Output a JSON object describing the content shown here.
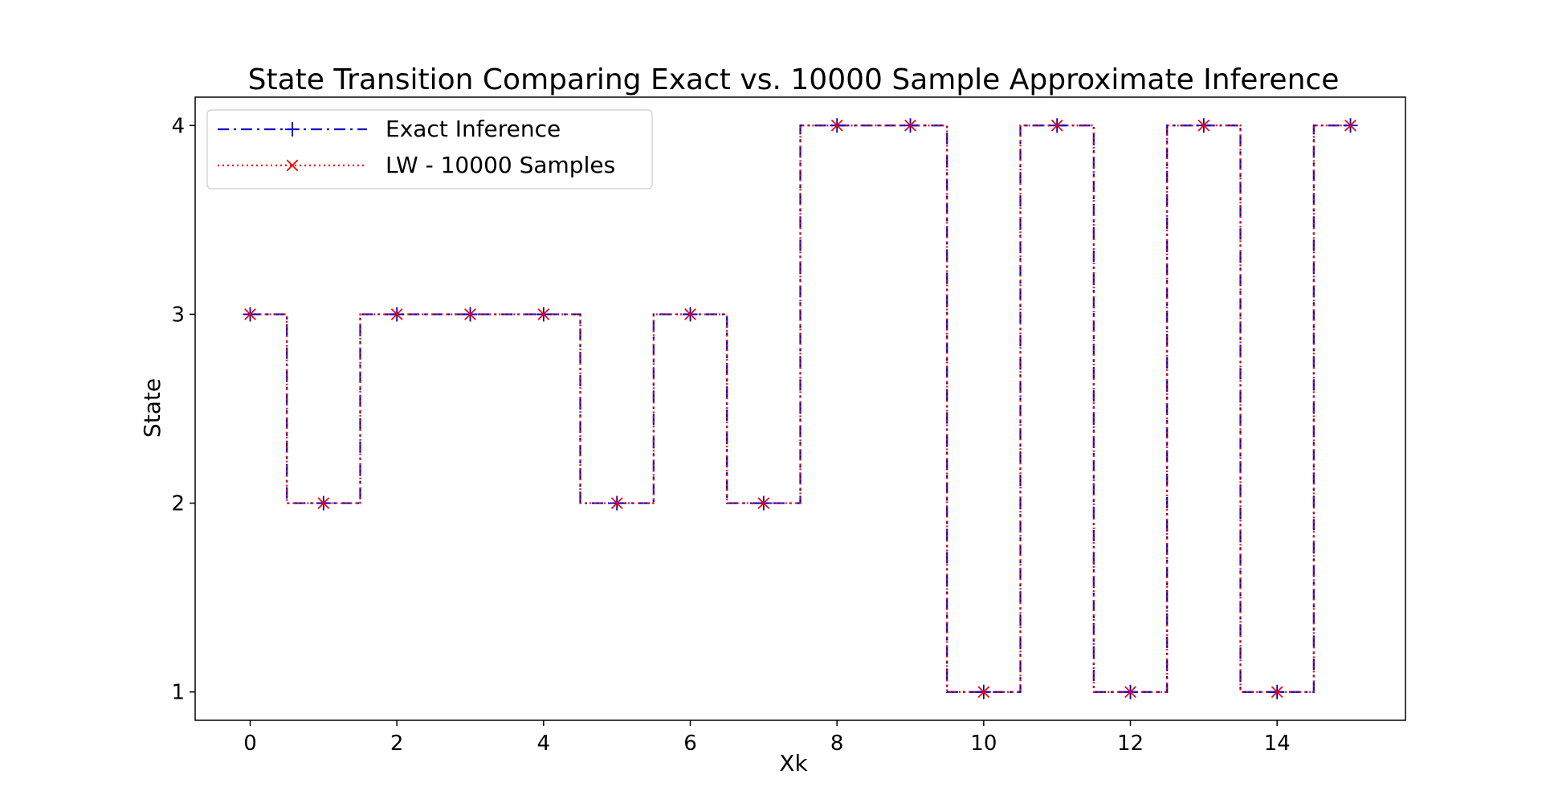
{
  "chart_data": {
    "type": "line",
    "title": "State Transition Comparing Exact vs. 10000 Sample Approximate Inference",
    "xlabel": "Xk",
    "ylabel": "State",
    "xlim": [
      -0.75,
      15.75
    ],
    "ylim": [
      0.85,
      4.15
    ],
    "xticks": [
      0,
      2,
      4,
      6,
      8,
      10,
      12,
      14
    ],
    "yticks": [
      1,
      2,
      3,
      4
    ],
    "grid": false,
    "legend_position": "top-left",
    "step": "mid",
    "x": [
      0,
      1,
      2,
      3,
      4,
      5,
      6,
      7,
      8,
      9,
      10,
      11,
      12,
      13,
      14,
      15
    ],
    "series": [
      {
        "name": "Exact Inference",
        "color": "#0000cc",
        "linestyle": "dashdot",
        "marker": "plus",
        "values": [
          3,
          2,
          3,
          3,
          3,
          2,
          3,
          2,
          4,
          4,
          1,
          4,
          1,
          4,
          1,
          4
        ]
      },
      {
        "name": "LW - 10000 Samples",
        "color": "#ff0000",
        "linestyle": "dotted",
        "marker": "x",
        "values": [
          3,
          2,
          3,
          3,
          3,
          2,
          3,
          2,
          4,
          4,
          1,
          4,
          1,
          4,
          1,
          4
        ]
      }
    ]
  }
}
